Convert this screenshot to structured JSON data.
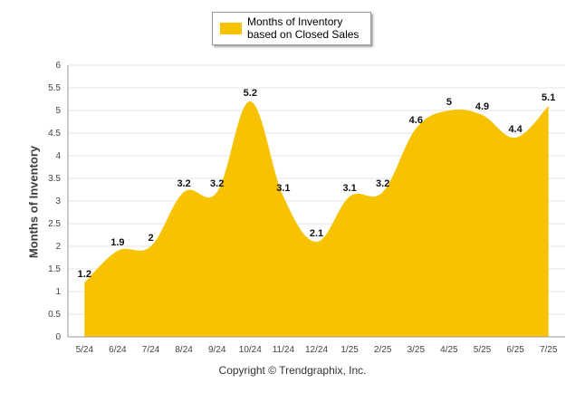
{
  "chart_data": {
    "type": "area",
    "categories": [
      "5/24",
      "6/24",
      "7/24",
      "8/24",
      "9/24",
      "10/24",
      "11/24",
      "12/24",
      "1/25",
      "2/25",
      "3/25",
      "4/25",
      "5/25",
      "6/25",
      "7/25"
    ],
    "series": [
      {
        "name": "Months of Inventory based on Closed Sales",
        "values": [
          1.2,
          1.9,
          2,
          3.2,
          3.2,
          5.2,
          3.1,
          2.1,
          3.1,
          3.2,
          4.6,
          5,
          4.9,
          4.4,
          5.1
        ]
      }
    ],
    "ylabel": "Months of Inventory",
    "ylim": [
      0,
      6
    ],
    "yticks": [
      "0",
      "0.5",
      "1",
      "1.5",
      "2",
      "2.5",
      "3",
      "3.5",
      "4",
      "4.5",
      "5",
      "5.5",
      "6"
    ],
    "grid": true,
    "legend_position": "top-center",
    "data_labels": true,
    "colors": {
      "fill": "#f7c300",
      "grid": "#e6e6e6",
      "axis": "#999999"
    }
  },
  "footer": {
    "copyright": "Copyright © Trendgraphix, Inc."
  }
}
